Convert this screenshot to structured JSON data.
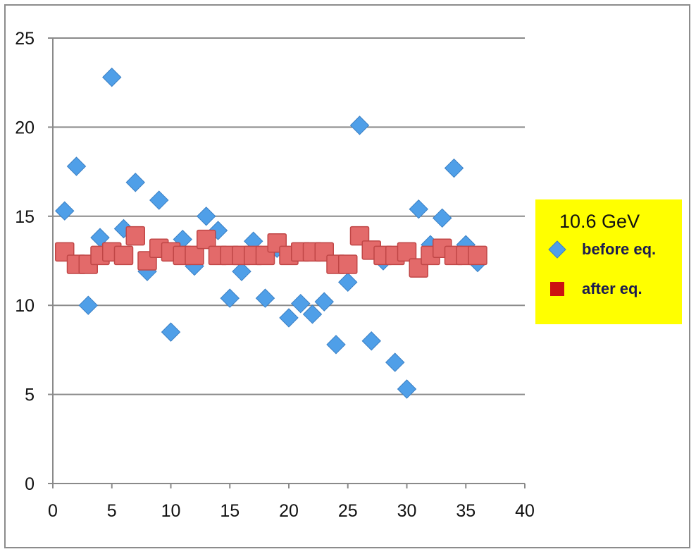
{
  "chart_data": {
    "type": "scatter",
    "title": "",
    "xlabel": "",
    "ylabel": "",
    "xlim": [
      0,
      40
    ],
    "ylim": [
      0,
      25
    ],
    "x_ticks": [
      "0",
      "5",
      "10",
      "15",
      "20",
      "25",
      "30",
      "35",
      "40"
    ],
    "y_ticks": [
      "0",
      "5",
      "10",
      "15",
      "20",
      "25"
    ],
    "grid": "horizontal",
    "legend_title": "10.6 GeV",
    "legend_position": "right",
    "series": [
      {
        "name": "before eq.",
        "marker": "diamond",
        "color": "#4f9fe8",
        "x": [
          1,
          2,
          3,
          4,
          5,
          6,
          7,
          8,
          9,
          10,
          11,
          12,
          13,
          14,
          15,
          16,
          17,
          18,
          19,
          20,
          21,
          22,
          23,
          24,
          25,
          26,
          27,
          28,
          29,
          30,
          31,
          32,
          33,
          34,
          35,
          36
        ],
        "y": [
          15.3,
          17.8,
          10.0,
          13.8,
          22.8,
          14.3,
          16.9,
          11.9,
          15.9,
          8.5,
          13.7,
          12.2,
          15.0,
          14.2,
          10.4,
          11.9,
          13.6,
          10.4,
          13.2,
          9.3,
          10.1,
          9.5,
          10.2,
          7.8,
          11.3,
          20.1,
          8.0,
          12.5,
          6.8,
          5.3,
          15.4,
          13.4,
          14.9,
          17.7,
          13.4,
          12.4
        ]
      },
      {
        "name": "after eq.",
        "marker": "square",
        "color": "#e36a6a",
        "x": [
          1,
          2,
          3,
          4,
          5,
          6,
          7,
          8,
          9,
          10,
          11,
          12,
          13,
          14,
          15,
          16,
          17,
          18,
          19,
          20,
          21,
          22,
          23,
          24,
          25,
          26,
          27,
          28,
          29,
          30,
          31,
          32,
          33,
          34,
          35,
          36
        ],
        "y": [
          13.0,
          12.3,
          12.3,
          12.8,
          13.0,
          12.8,
          13.9,
          12.5,
          13.2,
          13.0,
          12.8,
          12.8,
          13.7,
          12.8,
          12.8,
          12.8,
          12.8,
          12.8,
          13.5,
          12.8,
          13.0,
          13.0,
          13.0,
          12.3,
          12.3,
          13.9,
          13.1,
          12.8,
          12.8,
          13.0,
          12.1,
          12.8,
          13.2,
          12.8,
          12.8,
          12.8
        ]
      }
    ]
  }
}
